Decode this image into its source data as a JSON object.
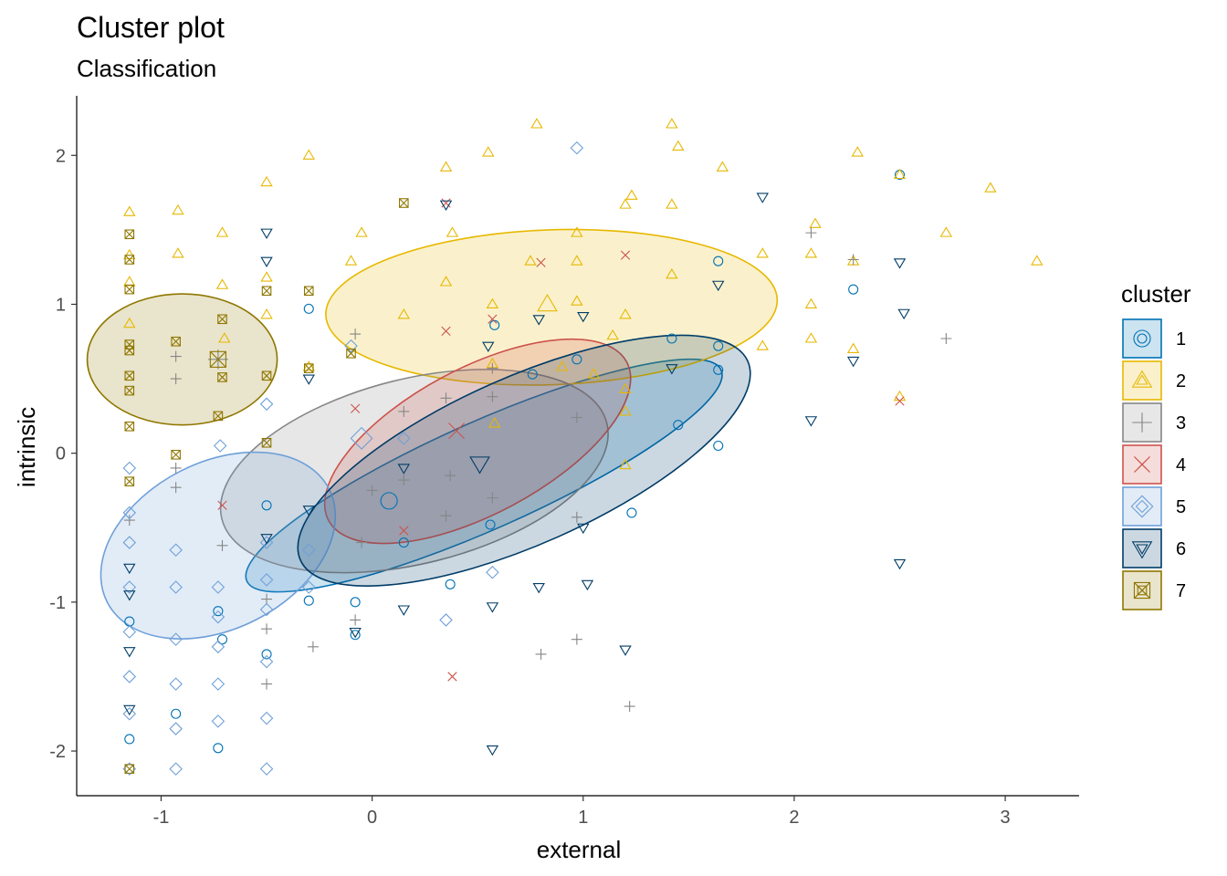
{
  "chart_data": {
    "type": "scatter",
    "title": "Cluster plot",
    "subtitle": "Classification",
    "xlabel": "external",
    "ylabel": "intrinsic",
    "xlim": [
      -1.4,
      3.35
    ],
    "ylim": [
      -2.3,
      2.4
    ],
    "xticks": [
      -1,
      0,
      1,
      2,
      3
    ],
    "xtick_labels": [
      "-1",
      "0",
      "1",
      "2",
      "3"
    ],
    "yticks": [
      -2,
      -1,
      0,
      1,
      2
    ],
    "ytick_labels": [
      "-2",
      "-1",
      "0",
      "1",
      "2"
    ],
    "grid": false,
    "legend": {
      "title": "cluster",
      "position": "right",
      "entries": [
        "1",
        "2",
        "3",
        "4",
        "5",
        "6",
        "7"
      ]
    },
    "clusters": [
      {
        "name": "1",
        "color": "#0072B5",
        "shape": "circle",
        "center": [
          0.08,
          -0.32
        ],
        "ellipse": {
          "cx": 0.53,
          "cy": -0.15,
          "rx": 1.23,
          "ry": 0.36,
          "angle_deg": -24
        },
        "points": [
          [
            -1.15,
            -1.13
          ],
          [
            -1.15,
            -1.92
          ],
          [
            -0.93,
            -1.75
          ],
          [
            -0.73,
            -1.06
          ],
          [
            -0.73,
            -1.98
          ],
          [
            -0.71,
            -1.25
          ],
          [
            -0.5,
            -1.35
          ],
          [
            -0.5,
            -0.35
          ],
          [
            -0.3,
            0.97
          ],
          [
            -0.3,
            -0.99
          ],
          [
            -0.08,
            -1.0
          ],
          [
            -0.08,
            -1.22
          ],
          [
            0.15,
            -0.6
          ],
          [
            0.37,
            -0.88
          ],
          [
            0.56,
            -0.48
          ],
          [
            0.76,
            0.53
          ],
          [
            0.97,
            0.63
          ],
          [
            1.23,
            -0.4
          ],
          [
            1.45,
            0.19
          ],
          [
            1.64,
            1.29
          ],
          [
            1.64,
            0.72
          ],
          [
            1.64,
            0.56
          ],
          [
            1.64,
            0.05
          ],
          [
            2.28,
            1.1
          ],
          [
            2.5,
            1.87
          ],
          [
            1.42,
            0.77
          ],
          [
            0.58,
            0.86
          ]
        ]
      },
      {
        "name": "2",
        "color": "#E7B800",
        "shape": "triangle",
        "center": [
          0.83,
          1.0
        ],
        "ellipse": {
          "cx": 0.85,
          "cy": 0.98,
          "rx": 1.07,
          "ry": 0.52,
          "angle_deg": -2
        },
        "points": [
          [
            -1.15,
            1.62
          ],
          [
            -1.15,
            1.33
          ],
          [
            -1.15,
            1.15
          ],
          [
            -1.15,
            0.87
          ],
          [
            -0.92,
            1.63
          ],
          [
            -0.92,
            1.34
          ],
          [
            -0.71,
            1.48
          ],
          [
            -0.71,
            1.13
          ],
          [
            -0.7,
            0.77
          ],
          [
            -0.5,
            1.82
          ],
          [
            -0.5,
            1.18
          ],
          [
            -0.5,
            0.93
          ],
          [
            -0.3,
            2.0
          ],
          [
            -0.1,
            1.29
          ],
          [
            -0.05,
            1.48
          ],
          [
            0.35,
            1.92
          ],
          [
            0.35,
            1.15
          ],
          [
            0.38,
            1.48
          ],
          [
            0.55,
            2.02
          ],
          [
            0.57,
            1.0
          ],
          [
            0.57,
            0.6
          ],
          [
            0.58,
            0.2
          ],
          [
            0.75,
            1.29
          ],
          [
            0.78,
            2.21
          ],
          [
            0.97,
            1.48
          ],
          [
            0.97,
            1.29
          ],
          [
            0.97,
            1.02
          ],
          [
            1.14,
            0.79
          ],
          [
            1.2,
            1.67
          ],
          [
            1.23,
            1.73
          ],
          [
            1.2,
            0.43
          ],
          [
            1.2,
            -0.08
          ],
          [
            1.2,
            0.28
          ],
          [
            1.42,
            2.21
          ],
          [
            1.45,
            2.06
          ],
          [
            1.42,
            1.67
          ],
          [
            1.42,
            1.2
          ],
          [
            1.66,
            1.92
          ],
          [
            1.85,
            1.34
          ],
          [
            1.85,
            0.72
          ],
          [
            2.08,
            1.34
          ],
          [
            2.08,
            1.0
          ],
          [
            2.08,
            0.77
          ],
          [
            2.1,
            1.54
          ],
          [
            2.28,
            1.29
          ],
          [
            2.28,
            0.7
          ],
          [
            2.3,
            2.02
          ],
          [
            2.5,
            1.87
          ],
          [
            2.5,
            0.38
          ],
          [
            2.72,
            1.48
          ],
          [
            2.93,
            1.78
          ],
          [
            3.15,
            1.29
          ],
          [
            0.9,
            0.58
          ],
          [
            1.05,
            0.53
          ],
          [
            0.15,
            0.93
          ],
          [
            -0.3,
            0.58
          ],
          [
            1.2,
            0.93
          ]
        ]
      },
      {
        "name": "3",
        "color": "#868686",
        "shape": "plus",
        "center": [
          -0.73,
          0.63
        ],
        "ellipse": {
          "cx": 0.2,
          "cy": -0.12,
          "rx": 0.94,
          "ry": 0.62,
          "angle_deg": -14
        },
        "points": [
          [
            -1.15,
            -0.45
          ],
          [
            -0.93,
            0.65
          ],
          [
            -0.93,
            0.5
          ],
          [
            -0.93,
            -0.1
          ],
          [
            -0.93,
            -0.23
          ],
          [
            -0.71,
            -0.62
          ],
          [
            -0.5,
            -0.98
          ],
          [
            -0.5,
            -1.18
          ],
          [
            -0.5,
            -1.55
          ],
          [
            -0.28,
            -1.3
          ],
          [
            -0.08,
            0.8
          ],
          [
            -0.08,
            -1.12
          ],
          [
            -0.05,
            -0.6
          ],
          [
            0.0,
            -0.25
          ],
          [
            0.15,
            0.28
          ],
          [
            0.15,
            -0.18
          ],
          [
            0.35,
            0.37
          ],
          [
            0.35,
            -0.42
          ],
          [
            0.37,
            -0.15
          ],
          [
            0.57,
            0.57
          ],
          [
            0.57,
            0.38
          ],
          [
            0.57,
            -0.3
          ],
          [
            0.8,
            -1.35
          ],
          [
            0.97,
            -1.25
          ],
          [
            0.97,
            -0.43
          ],
          [
            0.97,
            0.24
          ],
          [
            1.22,
            -1.7
          ],
          [
            2.08,
            1.48
          ],
          [
            2.72,
            0.77
          ],
          [
            2.28,
            1.3
          ]
        ]
      },
      {
        "name": "4",
        "color": "#CD534C",
        "shape": "cross",
        "center": [
          0.4,
          0.15
        ],
        "ellipse": {
          "cx": 0.5,
          "cy": 0.08,
          "rx": 0.8,
          "ry": 0.49,
          "angle_deg": -28
        },
        "points": [
          [
            -0.71,
            -0.35
          ],
          [
            0.15,
            -0.52
          ],
          [
            0.35,
            1.68
          ],
          [
            0.35,
            0.82
          ],
          [
            0.38,
            -1.5
          ],
          [
            0.8,
            1.28
          ],
          [
            1.2,
            1.33
          ],
          [
            2.5,
            0.35
          ],
          [
            0.57,
            0.9
          ],
          [
            -0.08,
            0.3
          ]
        ]
      },
      {
        "name": "5",
        "color": "#6FA0D8",
        "shape": "diamond",
        "center": [
          -0.05,
          0.1
        ],
        "ellipse": {
          "cx": -0.73,
          "cy": -0.62,
          "rx": 0.59,
          "ry": 0.56,
          "angle_deg": -27
        },
        "points": [
          [
            -1.15,
            -0.1
          ],
          [
            -1.15,
            -0.4
          ],
          [
            -1.15,
            -0.6
          ],
          [
            -1.15,
            -0.9
          ],
          [
            -1.15,
            -1.2
          ],
          [
            -1.15,
            -1.5
          ],
          [
            -1.15,
            -1.75
          ],
          [
            -1.15,
            -2.12
          ],
          [
            -0.93,
            -0.65
          ],
          [
            -0.93,
            -0.9
          ],
          [
            -0.93,
            -1.25
          ],
          [
            -0.93,
            -1.55
          ],
          [
            -0.93,
            -1.85
          ],
          [
            -0.93,
            -2.12
          ],
          [
            -0.73,
            -0.9
          ],
          [
            -0.73,
            -1.1
          ],
          [
            -0.73,
            -1.3
          ],
          [
            -0.73,
            -1.55
          ],
          [
            -0.73,
            -1.8
          ],
          [
            -0.5,
            -0.6
          ],
          [
            -0.5,
            -0.85
          ],
          [
            -0.5,
            -1.05
          ],
          [
            -0.5,
            -1.4
          ],
          [
            -0.5,
            -1.78
          ],
          [
            -0.5,
            -2.12
          ],
          [
            -0.3,
            -0.65
          ],
          [
            -0.3,
            -0.9
          ],
          [
            -0.1,
            0.72
          ],
          [
            0.15,
            0.1
          ],
          [
            0.35,
            -1.12
          ],
          [
            0.57,
            -0.8
          ],
          [
            0.97,
            2.05
          ],
          [
            -0.72,
            0.05
          ],
          [
            -0.5,
            0.33
          ]
        ]
      },
      {
        "name": "6",
        "color": "#003C67",
        "shape": "triangle-down",
        "center": [
          0.51,
          -0.07
        ],
        "ellipse": {
          "cx": 0.72,
          "cy": -0.05,
          "rx": 1.16,
          "ry": 0.56,
          "angle_deg": -24
        },
        "points": [
          [
            -1.15,
            -0.77
          ],
          [
            -1.15,
            -0.95
          ],
          [
            -1.15,
            -1.33
          ],
          [
            -1.15,
            -1.72
          ],
          [
            -0.5,
            1.48
          ],
          [
            -0.5,
            1.29
          ],
          [
            -0.5,
            -0.57
          ],
          [
            -0.3,
            0.5
          ],
          [
            -0.3,
            -0.38
          ],
          [
            -0.08,
            -1.2
          ],
          [
            0.15,
            -0.1
          ],
          [
            0.15,
            -1.05
          ],
          [
            0.35,
            1.67
          ],
          [
            0.55,
            0.72
          ],
          [
            0.57,
            -1.03
          ],
          [
            0.57,
            -1.99
          ],
          [
            0.79,
            0.9
          ],
          [
            0.79,
            -0.9
          ],
          [
            1.0,
            -0.5
          ],
          [
            1.02,
            -0.88
          ],
          [
            1.0,
            0.92
          ],
          [
            1.2,
            -1.32
          ],
          [
            1.42,
            0.57
          ],
          [
            1.64,
            1.13
          ],
          [
            1.85,
            1.72
          ],
          [
            2.08,
            0.22
          ],
          [
            2.28,
            0.62
          ],
          [
            2.5,
            1.28
          ],
          [
            2.5,
            -0.74
          ],
          [
            2.52,
            0.94
          ]
        ]
      },
      {
        "name": "7",
        "color": "#8F7700",
        "shape": "square-cross",
        "center": [
          -0.73,
          0.63
        ],
        "ellipse": {
          "cx": -0.9,
          "cy": 0.63,
          "rx": 0.45,
          "ry": 0.44,
          "angle_deg": 0
        },
        "points": [
          [
            -1.15,
            1.47
          ],
          [
            -1.15,
            1.3
          ],
          [
            -1.15,
            1.1
          ],
          [
            -1.15,
            0.73
          ],
          [
            -1.15,
            0.69
          ],
          [
            -1.15,
            0.52
          ],
          [
            -1.15,
            0.42
          ],
          [
            -1.15,
            0.18
          ],
          [
            -1.15,
            -0.19
          ],
          [
            -1.15,
            -2.12
          ],
          [
            -0.93,
            0.75
          ],
          [
            -0.93,
            -0.01
          ],
          [
            -0.71,
            0.9
          ],
          [
            -0.71,
            0.51
          ],
          [
            -0.73,
            0.25
          ],
          [
            -0.5,
            1.09
          ],
          [
            -0.5,
            0.52
          ],
          [
            -0.5,
            0.07
          ],
          [
            -0.3,
            0.57
          ],
          [
            -0.3,
            1.09
          ],
          [
            -0.1,
            0.67
          ],
          [
            0.15,
            1.68
          ]
        ]
      }
    ]
  }
}
